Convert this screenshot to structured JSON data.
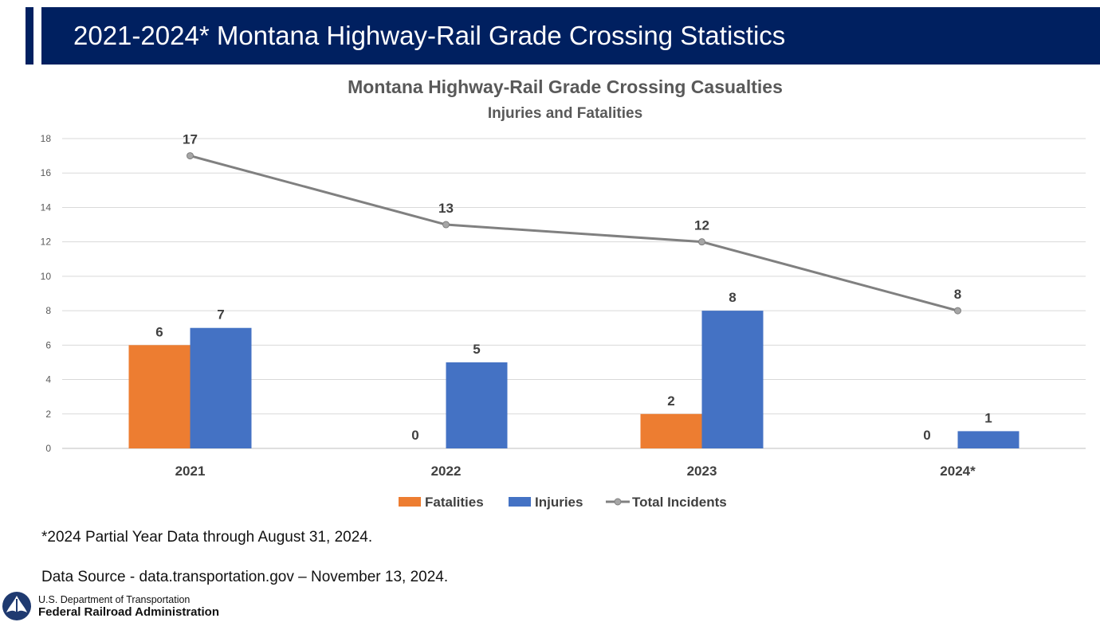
{
  "slide": {
    "title": "2021-2024* Montana Highway-Rail Grade Crossing Statistics",
    "footnote": "*2024 Partial Year Data through August 31, 2024.",
    "source": "Data Source - data.transportation.gov – November 13, 2024.",
    "logo": {
      "line1": "U.S. Department of Transportation",
      "line2": "Federal Railroad Administration"
    }
  },
  "chart_data": {
    "type": "bar",
    "title": "Montana Highway-Rail Grade Crossing Casualties",
    "subtitle": "Injuries and Fatalities",
    "categories": [
      "2021",
      "2022",
      "2023",
      "2024*"
    ],
    "series": [
      {
        "name": "Fatalities",
        "kind": "bar",
        "color": "#ED7D31",
        "values": [
          6,
          0,
          2,
          0
        ]
      },
      {
        "name": "Injuries",
        "kind": "bar",
        "color": "#4472C4",
        "values": [
          7,
          5,
          8,
          1
        ]
      },
      {
        "name": "Total Incidents",
        "kind": "line",
        "color": "#808080",
        "values": [
          17,
          13,
          12,
          8
        ]
      }
    ],
    "ylim": [
      0,
      18
    ],
    "yticks": [
      0,
      2,
      4,
      6,
      8,
      10,
      12,
      14,
      16,
      18
    ],
    "grid": true,
    "legend": "bottom",
    "data_labels": true
  }
}
